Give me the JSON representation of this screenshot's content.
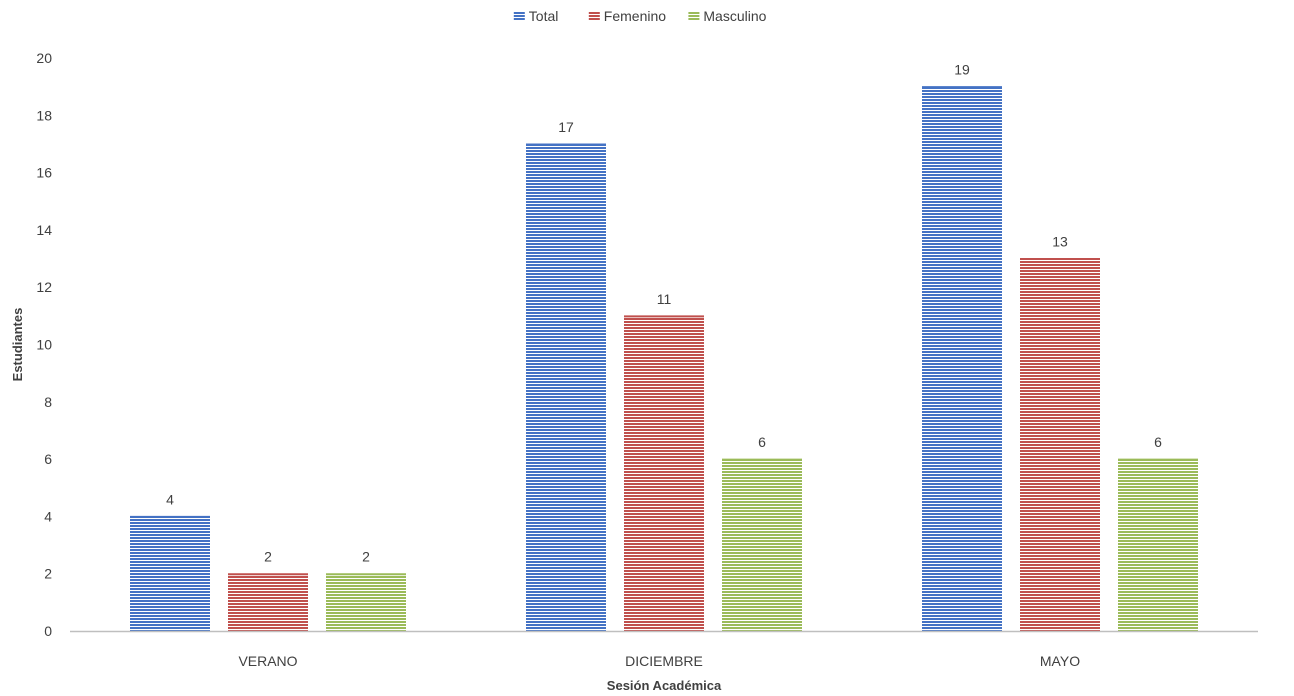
{
  "chart_data": {
    "type": "bar",
    "title": "",
    "xlabel": "Sesión Académica",
    "ylabel": "Estudiantes",
    "categories": [
      "VERANO",
      "DICIEMBRE",
      "MAYO"
    ],
    "series": [
      {
        "name": "Total",
        "values": [
          4,
          17,
          19
        ],
        "color": "#4472C4"
      },
      {
        "name": "Femenino",
        "values": [
          2,
          11,
          13
        ],
        "color": "#C0504D"
      },
      {
        "name": "Masculino",
        "values": [
          2,
          6,
          6
        ],
        "color": "#9BBB59"
      }
    ],
    "ylim": [
      0,
      20
    ],
    "yticks": [
      0,
      2,
      4,
      6,
      8,
      10,
      12,
      14,
      16,
      18,
      20
    ],
    "grid": false,
    "legend_position": "top-center",
    "data_labels": true,
    "bar_fill": "horizontal-stripes"
  }
}
